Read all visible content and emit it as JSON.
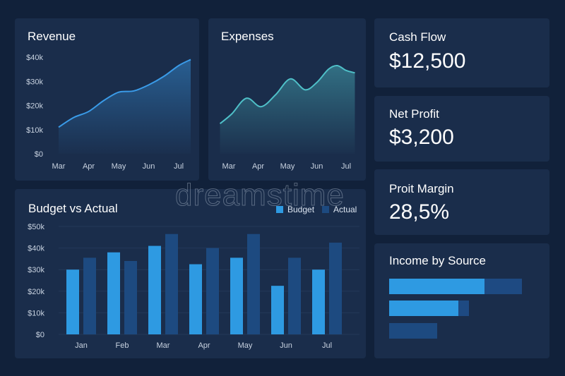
{
  "colors": {
    "background": "#11213a",
    "card": "#1a2d4b",
    "revenue_line": "#3a9be8",
    "expenses_line": "#4fc0c8",
    "budget": "#2e9ae2",
    "actual": "#1d4a80"
  },
  "revenue": {
    "title": "Revenue",
    "chart_data": {
      "type": "area",
      "title": "Revenue",
      "categories": [
        "Mar",
        "Apr",
        "May",
        "Jun",
        "Jul"
      ],
      "y_ticks": [
        "$0",
        "$10k",
        "$20k",
        "$30k",
        "$40k"
      ],
      "ylim": [
        0,
        40000
      ],
      "x": [
        0,
        0.5,
        1,
        1.5,
        2,
        2.5,
        3,
        3.5,
        4,
        4.4
      ],
      "values": [
        11000,
        15000,
        17500,
        22000,
        25500,
        26000,
        28500,
        32000,
        36500,
        39000
      ]
    }
  },
  "expenses": {
    "title": "Expenses",
    "chart_data": {
      "type": "area",
      "title": "Expenses",
      "categories": [
        "Mar",
        "Apr",
        "May",
        "Jun",
        "Jul"
      ],
      "ylim": [
        0,
        40000
      ],
      "x": [
        -0.3,
        0.1,
        0.6,
        1.1,
        1.6,
        2.1,
        2.6,
        3.0,
        3.4,
        3.7,
        4.0,
        4.3
      ],
      "values": [
        12500,
        16500,
        23000,
        19500,
        24500,
        31000,
        26500,
        29500,
        35000,
        36500,
        34500,
        33500
      ]
    }
  },
  "kpis": [
    {
      "label": "Cash Flow",
      "value": "$12,500"
    },
    {
      "label": "Net Profit",
      "value": "$3,200"
    },
    {
      "label": "Proit Margin",
      "value": "28,5%"
    }
  ],
  "budget": {
    "title": "Budget vs Actual",
    "chart_data": {
      "type": "bar",
      "title": "Budget vs Actual",
      "categories": [
        "Jan",
        "Feb",
        "Mar",
        "Apr",
        "May",
        "Jun",
        "Jul"
      ],
      "y_ticks": [
        "$0",
        "$10k",
        "$20k",
        "$30k",
        "$40k",
        "$50k"
      ],
      "ylim": [
        0,
        50000
      ],
      "legend": "top-right",
      "series": [
        {
          "name": "Budget",
          "values": [
            30000,
            38000,
            41000,
            32500,
            35500,
            22500,
            30000
          ]
        },
        {
          "name": "Actual",
          "values": [
            35500,
            34000,
            46500,
            40000,
            46500,
            35500,
            42500
          ]
        }
      ]
    }
  },
  "income": {
    "title": "Income by Source",
    "chart_data": {
      "type": "bar",
      "orientation": "horizontal",
      "title": "Income by Source",
      "max": 100,
      "rows": [
        {
          "track": 100,
          "fill": 72
        },
        {
          "track": 60,
          "fill": 52
        },
        {
          "track": 36,
          "fill": 36
        }
      ]
    }
  },
  "watermark": "dreamstime"
}
